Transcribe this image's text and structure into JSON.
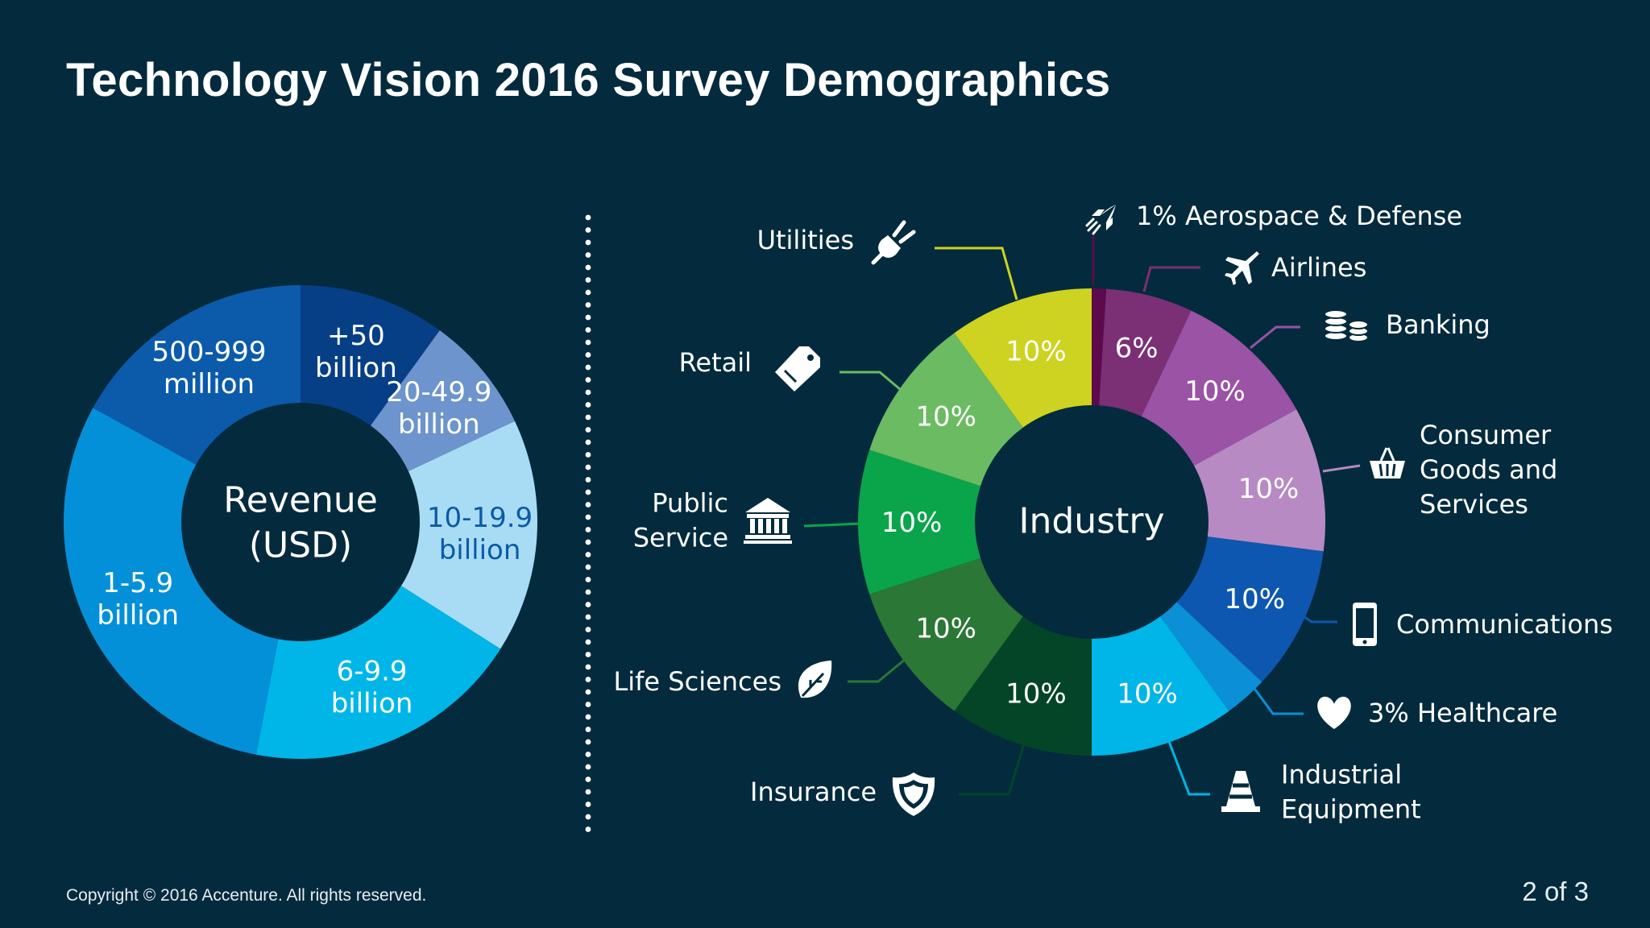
{
  "title": "Technology Vision 2016 Survey Demographics",
  "footer": {
    "copyright": "Copyright © 2016 Accenture. All rights reserved.",
    "page": "2 of 3"
  },
  "chart_data": [
    {
      "type": "pie",
      "center_label": [
        "Revenue",
        "(USD)"
      ],
      "slices": [
        {
          "label": [
            "+50",
            "billion"
          ],
          "color": "#063f86",
          "label_color": "#ffffff"
        },
        {
          "label": [
            "20-49.9",
            "billion"
          ],
          "color": "#6d94cc",
          "label_color": "#ffffff"
        },
        {
          "label": [
            "10-19.9",
            "billion"
          ],
          "color": "#a8dcf5",
          "label_color": "#0b5aa8"
        },
        {
          "label": [
            "6-9.9",
            "billion"
          ],
          "color": "#00b6e8",
          "label_color": "#ffffff"
        },
        {
          "label": [
            "1-5.9",
            "billion"
          ],
          "color": "#0490d8",
          "label_color": "#ffffff"
        },
        {
          "label": [
            "500-999",
            "million"
          ],
          "color": "#0c5bab",
          "label_color": "#ffffff"
        }
      ],
      "estimated_shares_percent": [
        10,
        8,
        16,
        19,
        30,
        17
      ]
    },
    {
      "type": "pie",
      "center_label": [
        "Industry"
      ],
      "slices": [
        {
          "name": [
            "Aerospace & Defense"
          ],
          "value_label": "",
          "legend_prefix": "1%",
          "value": 1,
          "color": "#5c0a4c",
          "icon": "rocket-icon"
        },
        {
          "name": [
            "Airlines"
          ],
          "value_label": "6%",
          "value": 6,
          "color": "#7b2f75",
          "icon": "airplane-icon"
        },
        {
          "name": [
            "Banking"
          ],
          "value_label": "10%",
          "value": 10,
          "color": "#9a53a5",
          "icon": "coins-icon"
        },
        {
          "name": [
            "Consumer",
            "Goods and",
            "Services"
          ],
          "value_label": "10%",
          "value": 10,
          "color": "#b78ac4",
          "icon": "basket-icon"
        },
        {
          "name": [
            "Communications"
          ],
          "value_label": "10%",
          "value": 10,
          "color": "#0e57b0",
          "icon": "phone-icon"
        },
        {
          "name": [
            "Healthcare"
          ],
          "value_label": "",
          "legend_prefix": "3%",
          "value": 3,
          "color": "#0b8fd6",
          "icon": "heart-icon"
        },
        {
          "name": [
            "Industrial",
            "Equipment"
          ],
          "value_label": "10%",
          "value": 10,
          "color": "#00b5e8",
          "icon": "cone-icon"
        },
        {
          "name": [
            "Insurance"
          ],
          "value_label": "10%",
          "value": 10,
          "color": "#034526",
          "icon": "shield-icon"
        },
        {
          "name": [
            "Life Sciences"
          ],
          "value_label": "10%",
          "value": 10,
          "color": "#2b7735",
          "icon": "leaf-icon"
        },
        {
          "name": [
            "Public",
            "Service"
          ],
          "value_label": "10%",
          "value": 10,
          "color": "#0aa54b",
          "icon": "bank-icon"
        },
        {
          "name": [
            "Retail"
          ],
          "value_label": "10%",
          "value": 10,
          "color": "#6bbb62",
          "icon": "tag-icon"
        },
        {
          "name": [
            "Utilities"
          ],
          "value_label": "10%",
          "value": 10,
          "color": "#cdd320",
          "icon": "plug-icon"
        }
      ]
    }
  ]
}
